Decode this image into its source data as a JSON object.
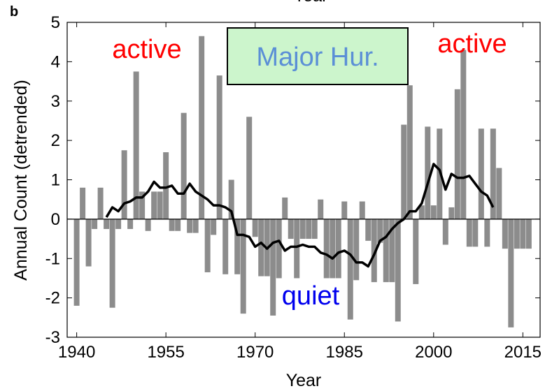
{
  "chart_data": {
    "type": "bar",
    "panel_label": "b",
    "top_label": "Year",
    "x_label": "Year",
    "y_label": "Annual Count (detrended)",
    "xlim": [
      1938.4,
      2017.9
    ],
    "xticks": [
      1940,
      1955,
      1970,
      1985,
      2000,
      2015
    ],
    "ylim": [
      -3,
      5
    ],
    "yticks": [
      -3,
      -2,
      -1,
      0,
      1,
      2,
      3,
      4,
      5
    ],
    "x": [
      1940,
      1941,
      1942,
      1943,
      1944,
      1945,
      1946,
      1947,
      1948,
      1949,
      1950,
      1951,
      1952,
      1953,
      1954,
      1955,
      1956,
      1957,
      1958,
      1959,
      1960,
      1961,
      1962,
      1963,
      1964,
      1965,
      1966,
      1967,
      1968,
      1969,
      1970,
      1971,
      1972,
      1973,
      1974,
      1975,
      1976,
      1977,
      1978,
      1979,
      1980,
      1981,
      1982,
      1983,
      1984,
      1985,
      1986,
      1987,
      1988,
      1989,
      1990,
      1991,
      1992,
      1993,
      1994,
      1995,
      1996,
      1997,
      1998,
      1999,
      2000,
      2001,
      2002,
      2003,
      2004,
      2005,
      2006,
      2007,
      2008,
      2009,
      2010,
      2011,
      2012,
      2013,
      2014,
      2015,
      2016
    ],
    "series": [
      {
        "type": "bar",
        "color": "#8c8c8c",
        "values": [
          -2.2,
          0.8,
          -1.2,
          -0.25,
          0.8,
          -0.25,
          -2.25,
          -0.25,
          1.75,
          -0.25,
          3.75,
          0.7,
          -0.3,
          0.7,
          0.7,
          1.7,
          -0.3,
          -0.3,
          2.7,
          -0.35,
          -0.35,
          4.65,
          -1.35,
          -0.4,
          3.65,
          -1.4,
          1.0,
          -1.4,
          -2.4,
          2.6,
          -0.45,
          -1.45,
          -1.45,
          -2.45,
          -1.5,
          0.55,
          -0.5,
          -1.5,
          -0.5,
          -0.5,
          -0.5,
          0.5,
          -1.5,
          -1.5,
          -1.5,
          0.45,
          -2.55,
          -1.55,
          0.45,
          -0.55,
          -1.6,
          -0.6,
          -1.6,
          -1.6,
          -2.6,
          2.4,
          3.4,
          -1.65,
          0.35,
          2.35,
          0.35,
          2.3,
          -0.65,
          0.3,
          3.3,
          4.3,
          -0.7,
          -0.7,
          2.3,
          -0.7,
          2.3,
          1.3,
          -0.75,
          -2.75,
          -0.75,
          -0.75,
          -0.75
        ]
      },
      {
        "type": "line",
        "color": "#000000",
        "values": [
          null,
          null,
          null,
          null,
          null,
          0.05,
          0.3,
          0.2,
          0.4,
          0.45,
          0.55,
          0.55,
          0.7,
          0.95,
          0.8,
          0.8,
          0.85,
          0.65,
          0.65,
          0.9,
          0.7,
          0.6,
          0.5,
          0.35,
          0.35,
          0.3,
          0.2,
          -0.4,
          -0.4,
          -0.45,
          -0.7,
          -0.6,
          -0.75,
          -0.6,
          -0.55,
          -0.8,
          -0.7,
          -0.7,
          -0.65,
          -0.7,
          -0.7,
          -0.85,
          -0.9,
          -1.0,
          -0.85,
          -0.8,
          -0.9,
          -1.1,
          -1.1,
          -1.2,
          -0.9,
          -0.55,
          -0.45,
          -0.25,
          -0.1,
          0.0,
          0.2,
          0.2,
          0.4,
          0.9,
          1.4,
          1.25,
          0.75,
          1.15,
          1.05,
          1.05,
          1.1,
          0.9,
          0.7,
          0.6,
          0.3,
          null,
          null,
          null,
          null,
          null,
          null
        ]
      }
    ],
    "annotations": [
      {
        "text": "active",
        "color": "#ff0000"
      },
      {
        "text": "Major Hur.",
        "color": "#5b8fd6",
        "box": "#ccf5cc"
      },
      {
        "text": "active",
        "color": "#ff0000"
      },
      {
        "text": "quiet",
        "color": "#0000ee"
      }
    ]
  }
}
